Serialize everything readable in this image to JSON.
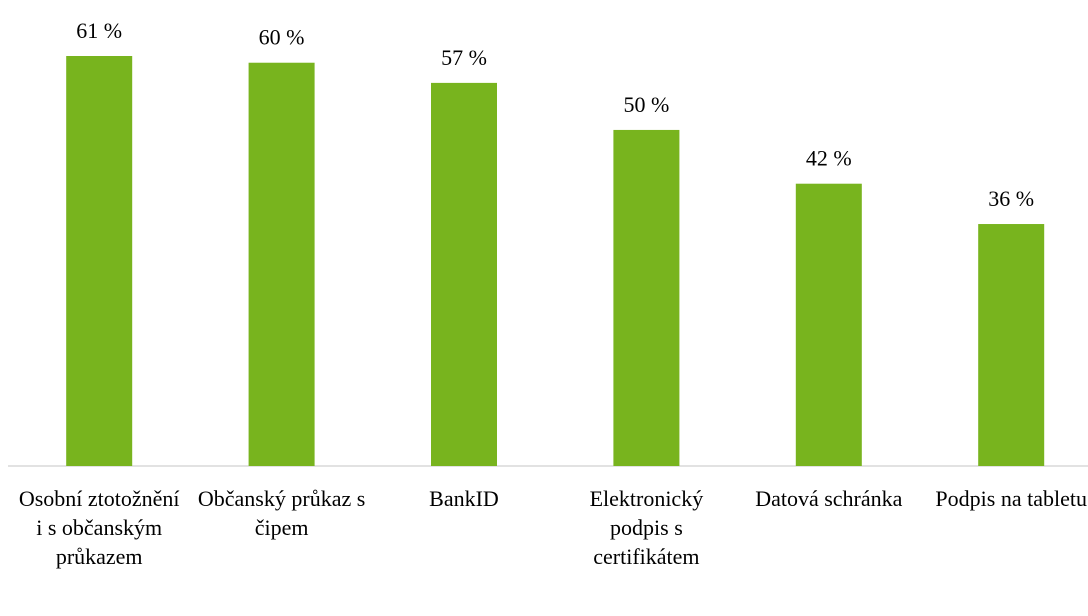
{
  "chart_data": {
    "type": "bar",
    "categories": [
      "Osobní ztotožnění i s občanským průkazem",
      "Občanský průkaz s čipem",
      "BankID",
      "Elektronický podpis s certifikátem",
      "Datová schránka",
      "Podpis na tabletu"
    ],
    "values": [
      61,
      60,
      57,
      50,
      42,
      36
    ],
    "value_labels": [
      "61 %",
      "60 %",
      "57 %",
      "50 %",
      "42 %",
      "36 %"
    ],
    "color": "#78b41e"
  }
}
